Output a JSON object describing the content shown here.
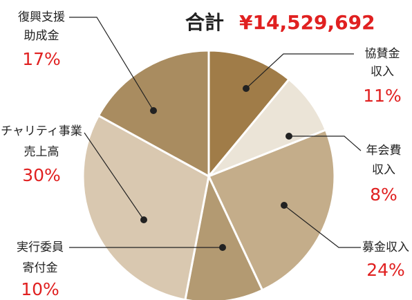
{
  "chart_data": {
    "type": "pie",
    "title": "合計",
    "total": "¥14,529,692",
    "categories": [
      [
        "協賛金",
        "収入"
      ],
      [
        "年会費",
        "収入"
      ],
      [
        "募金収入"
      ],
      [
        "実行委員",
        "寄付金"
      ],
      [
        "チャリティ事業",
        "売上高"
      ],
      [
        "復興支援",
        "助成金"
      ]
    ],
    "values": [
      11,
      8,
      24,
      10,
      30,
      17
    ],
    "value_labels": [
      "11%",
      "8%",
      "24%",
      "10%",
      "30%",
      "17%"
    ],
    "colors": [
      "#a07c48",
      "#ebe4d7",
      "#c4ad8a",
      "#b39a72",
      "#d9c8b0",
      "#a98c60"
    ]
  }
}
